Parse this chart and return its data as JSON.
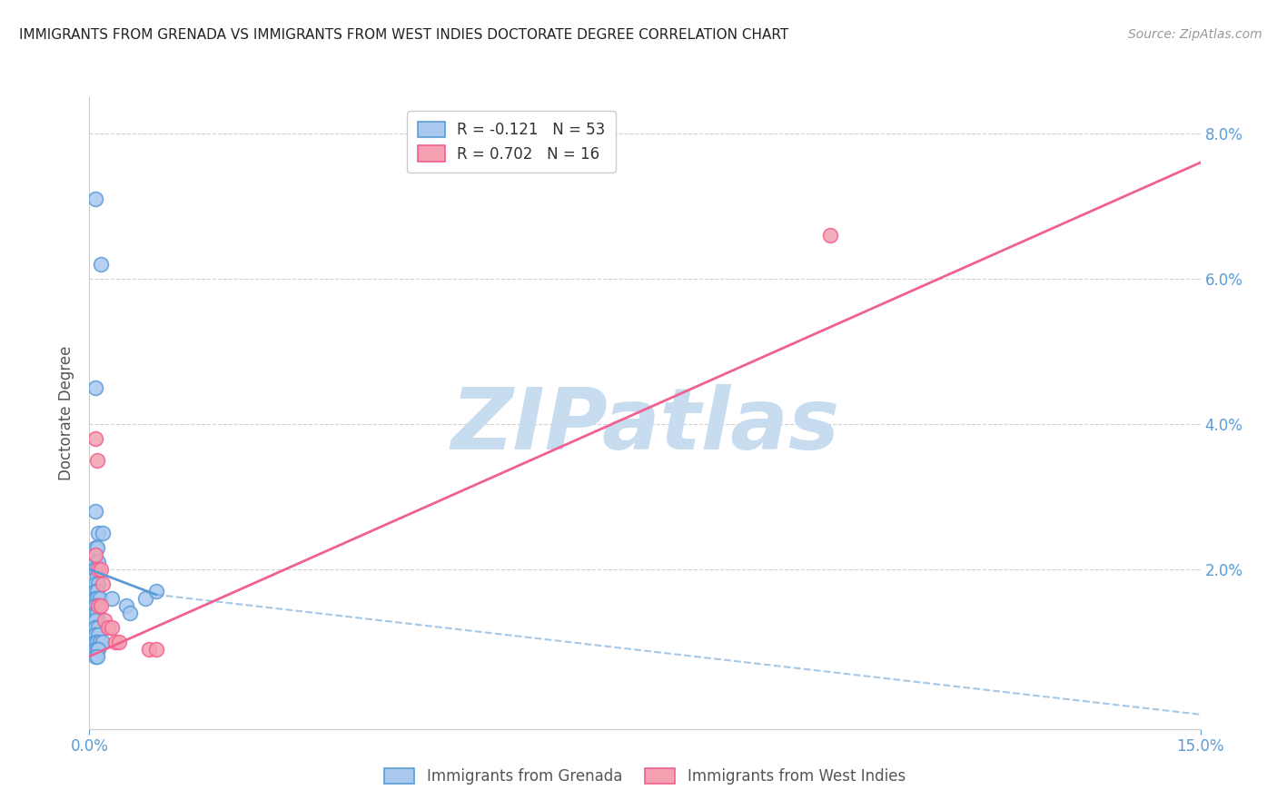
{
  "title": "IMMIGRANTS FROM GRENADA VS IMMIGRANTS FROM WEST INDIES DOCTORATE DEGREE CORRELATION CHART",
  "source": "Source: ZipAtlas.com",
  "ylabel": "Doctorate Degree",
  "watermark": "ZIPatlas",
  "xlim": [
    0.0,
    0.15
  ],
  "ylim": [
    -0.002,
    0.085
  ],
  "plot_ylim": [
    0.0,
    0.085
  ],
  "xticks": [
    0.0,
    0.15
  ],
  "xticklabels": [
    "0.0%",
    "15.0%"
  ],
  "yticks_right": [
    0.0,
    0.02,
    0.04,
    0.06,
    0.08
  ],
  "yticklabels_right": [
    "",
    "2.0%",
    "4.0%",
    "6.0%",
    "8.0%"
  ],
  "grid_yticks": [
    0.02,
    0.04,
    0.06,
    0.08
  ],
  "legend_entries": [
    {
      "label": "R = -0.121   N = 53",
      "color": "#a8c8f0"
    },
    {
      "label": "R = 0.702   N = 16",
      "color": "#f4a0b0"
    }
  ],
  "legend_labels_bottom": [
    "Immigrants from Grenada",
    "Immigrants from West Indies"
  ],
  "blue_scatter": [
    [
      0.0008,
      0.071
    ],
    [
      0.0015,
      0.062
    ],
    [
      0.0008,
      0.045
    ],
    [
      0.0008,
      0.028
    ],
    [
      0.0012,
      0.025
    ],
    [
      0.0018,
      0.025
    ],
    [
      0.0008,
      0.023
    ],
    [
      0.001,
      0.023
    ],
    [
      0.0008,
      0.021
    ],
    [
      0.0012,
      0.021
    ],
    [
      0.0008,
      0.02
    ],
    [
      0.0008,
      0.02
    ],
    [
      0.001,
      0.019
    ],
    [
      0.0008,
      0.018
    ],
    [
      0.0012,
      0.018
    ],
    [
      0.0008,
      0.017
    ],
    [
      0.0008,
      0.017
    ],
    [
      0.001,
      0.017
    ],
    [
      0.0008,
      0.016
    ],
    [
      0.0008,
      0.016
    ],
    [
      0.001,
      0.016
    ],
    [
      0.0014,
      0.016
    ],
    [
      0.0008,
      0.015
    ],
    [
      0.0008,
      0.015
    ],
    [
      0.0008,
      0.015
    ],
    [
      0.0012,
      0.015
    ],
    [
      0.0008,
      0.014
    ],
    [
      0.0008,
      0.014
    ],
    [
      0.0008,
      0.014
    ],
    [
      0.001,
      0.014
    ],
    [
      0.0008,
      0.013
    ],
    [
      0.001,
      0.013
    ],
    [
      0.0008,
      0.013
    ],
    [
      0.0008,
      0.012
    ],
    [
      0.0008,
      0.012
    ],
    [
      0.0012,
      0.012
    ],
    [
      0.0008,
      0.011
    ],
    [
      0.0008,
      0.011
    ],
    [
      0.0012,
      0.011
    ],
    [
      0.0008,
      0.01
    ],
    [
      0.001,
      0.01
    ],
    [
      0.0014,
      0.01
    ],
    [
      0.0018,
      0.01
    ],
    [
      0.0008,
      0.009
    ],
    [
      0.001,
      0.009
    ],
    [
      0.0012,
      0.009
    ],
    [
      0.0008,
      0.008
    ],
    [
      0.001,
      0.008
    ],
    [
      0.003,
      0.016
    ],
    [
      0.005,
      0.015
    ],
    [
      0.0055,
      0.014
    ],
    [
      0.0075,
      0.016
    ],
    [
      0.009,
      0.017
    ]
  ],
  "pink_scatter": [
    [
      0.0008,
      0.038
    ],
    [
      0.001,
      0.035
    ],
    [
      0.0008,
      0.022
    ],
    [
      0.0012,
      0.02
    ],
    [
      0.0015,
      0.02
    ],
    [
      0.0018,
      0.018
    ],
    [
      0.0012,
      0.015
    ],
    [
      0.0015,
      0.015
    ],
    [
      0.002,
      0.013
    ],
    [
      0.0025,
      0.012
    ],
    [
      0.003,
      0.012
    ],
    [
      0.0035,
      0.01
    ],
    [
      0.004,
      0.01
    ],
    [
      0.008,
      0.009
    ],
    [
      0.009,
      0.009
    ],
    [
      0.1,
      0.066
    ]
  ],
  "blue_line_solid": {
    "x_start": 0.0,
    "x_end": 0.009,
    "y_start": 0.02,
    "y_end": 0.0165
  },
  "blue_line_dash": {
    "x_start": 0.009,
    "x_end": 0.15,
    "y_start": 0.0165,
    "y_end": 0.0
  },
  "pink_line": {
    "x_start": 0.0,
    "x_end": 0.15,
    "y_start": 0.008,
    "y_end": 0.076
  },
  "blue_color": "#5b9bd5",
  "pink_color": "#f06090",
  "blue_scatter_color": "#a8c8f0",
  "pink_scatter_color": "#f4a0b0",
  "background_color": "#ffffff",
  "grid_color": "#cccccc",
  "title_color": "#222222",
  "axis_color": "#5b9bd5",
  "watermark_color": "#d0e4f5",
  "watermark_font_color": "#c8dcf0"
}
